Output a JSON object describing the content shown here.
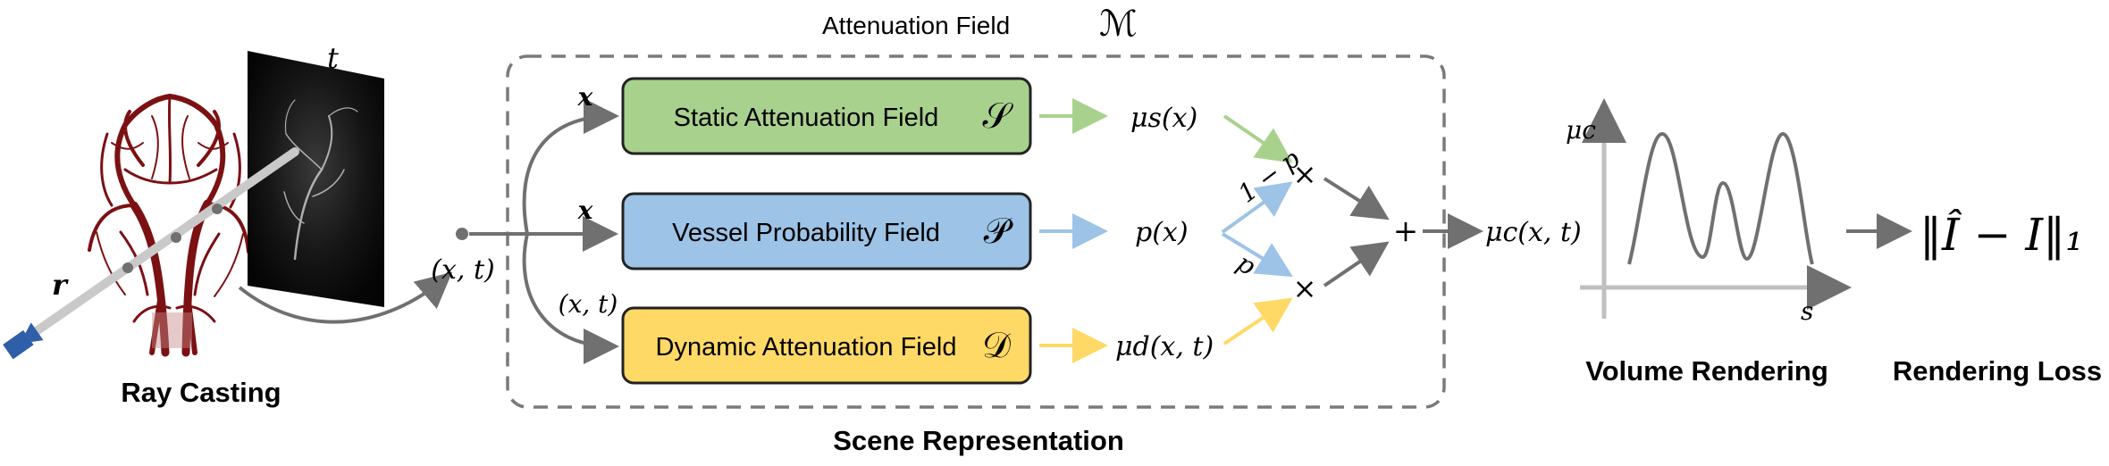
{
  "ray_casting": {
    "label": "Ray Casting",
    "ray_symbol": "r",
    "time_symbol": "t"
  },
  "input_point": {
    "label": "(x, t)"
  },
  "attenuation_field": {
    "title": "Attenuation Field",
    "symbol": "ℳ"
  },
  "scene_representation": {
    "label": "Scene Representation"
  },
  "inputs": {
    "static": "x",
    "vessel": "x",
    "dynamic": "(x, t)"
  },
  "fields": [
    {
      "label": "Static Attenuation Field",
      "symbol": "𝒮",
      "output": "μs(x)",
      "color": "#a9d18e",
      "arrow_color": "#a9d18e"
    },
    {
      "label": "Vessel Probability Field",
      "symbol": "𝒫",
      "output": "p(x)",
      "color": "#9dc3e6",
      "arrow_color": "#9dc3e6"
    },
    {
      "label": "Dynamic Attenuation Field",
      "symbol": "𝒟",
      "output": "μd(x, t)",
      "color": "#ffd966",
      "arrow_color": "#ffd966"
    }
  ],
  "weights": {
    "top": "1 − p",
    "bottom": "p"
  },
  "operators": {
    "multiply": "×",
    "add": "+"
  },
  "combined_output": "μc(x, t)",
  "volume_rendering": {
    "label": "Volume Rendering",
    "y_axis": "μc",
    "x_axis": "s"
  },
  "rendering_loss": {
    "label": "Rendering Loss",
    "formula": "‖Î − I‖₁"
  },
  "colors": {
    "arrow_gray": "#707070",
    "vessel_red": "#7b1113",
    "camera_blue": "#2e5fa8"
  }
}
